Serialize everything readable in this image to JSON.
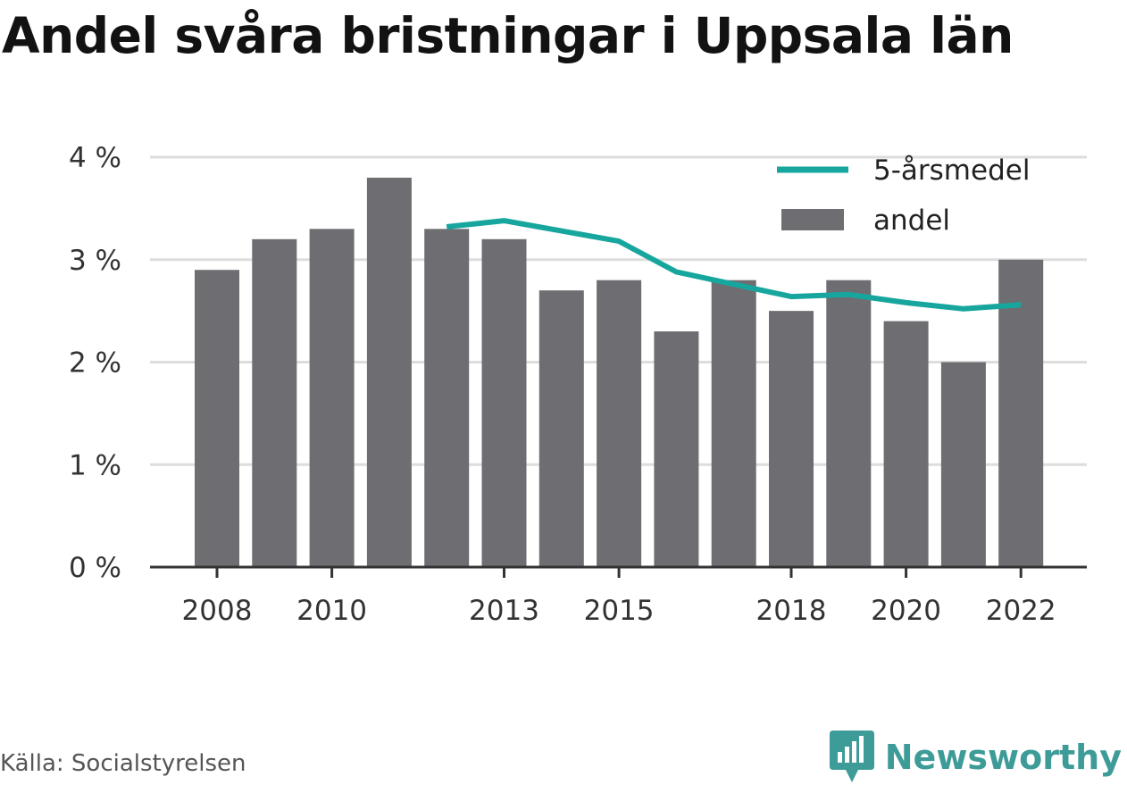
{
  "title": "Andel svåra bristningar i Uppsala län",
  "source": "Källa: Socialstyrelsen",
  "brand": {
    "name": "Newsworthy",
    "color": "#3d9b98"
  },
  "colors": {
    "bar": "#6e6d72",
    "line": "#17a69d",
    "grid": "#dddddd",
    "axis": "#333333"
  },
  "chart_data": {
    "type": "bar",
    "x": [
      2008,
      2009,
      2010,
      2011,
      2012,
      2013,
      2014,
      2015,
      2016,
      2017,
      2018,
      2019,
      2020,
      2021,
      2022
    ],
    "series": [
      {
        "name": "andel",
        "type": "bar",
        "values": [
          2.9,
          3.2,
          3.3,
          3.8,
          3.3,
          3.2,
          2.7,
          2.8,
          2.3,
          2.8,
          2.5,
          2.8,
          2.4,
          2.0,
          3.0
        ]
      },
      {
        "name": "5-årsmedel",
        "type": "line",
        "values": [
          null,
          null,
          null,
          null,
          3.32,
          3.38,
          3.28,
          3.18,
          2.88,
          2.76,
          2.64,
          2.66,
          2.58,
          2.52,
          2.56
        ]
      }
    ],
    "x_tick_labels": [
      "2008",
      "2010",
      "2013",
      "2015",
      "2018",
      "2020",
      "2022"
    ],
    "y_tick_labels": [
      "0 %",
      "1 %",
      "2 %",
      "3 %",
      "4 %"
    ],
    "y_ticks": [
      0,
      1,
      2,
      3,
      4
    ],
    "ylim": [
      0,
      4
    ],
    "grid": true,
    "legend_position": "top-right",
    "legend_order": [
      "5-årsmedel",
      "andel"
    ]
  }
}
